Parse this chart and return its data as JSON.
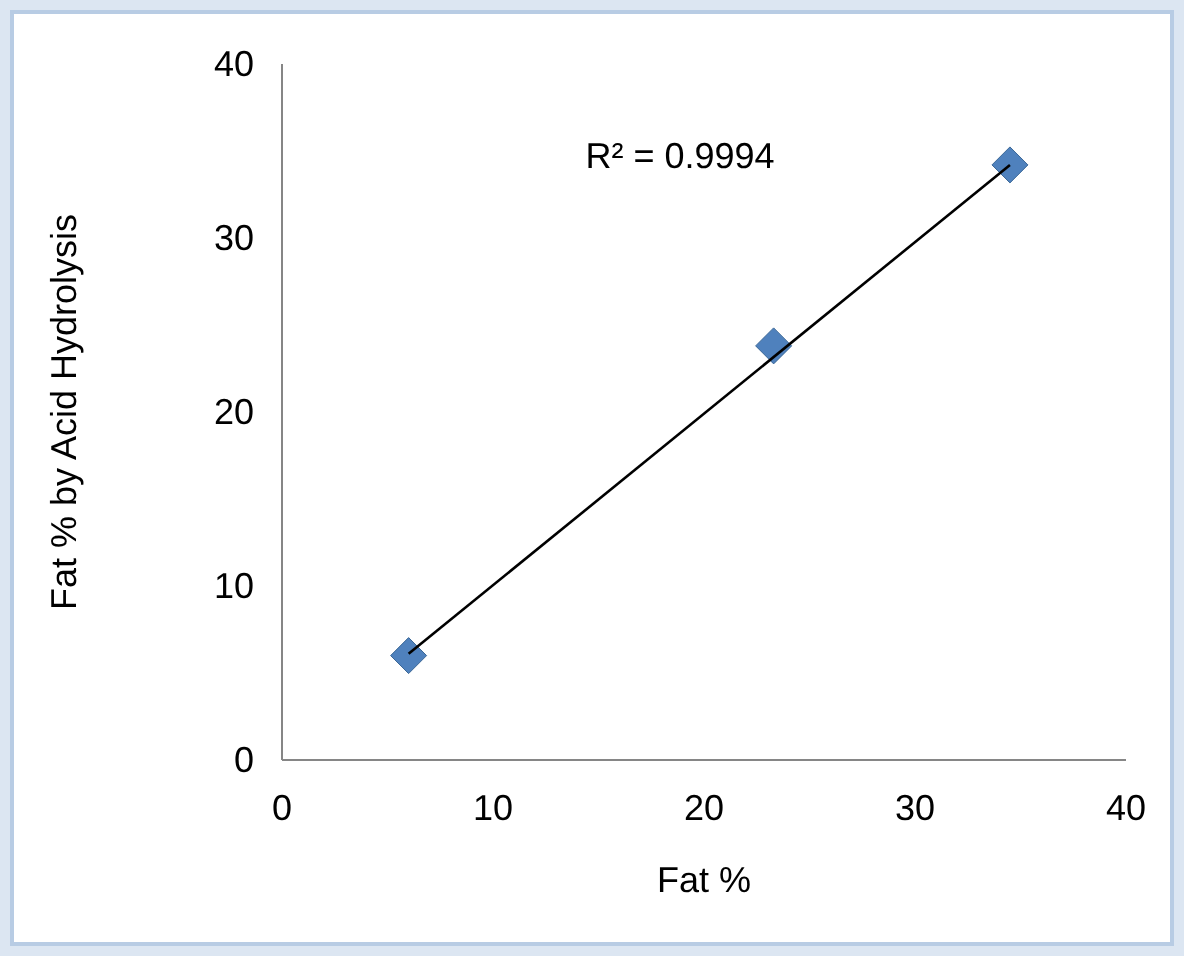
{
  "chart_data": {
    "type": "scatter",
    "xlabel": "Fat %",
    "ylabel": "Fat % by Acid Hydrolysis",
    "xlim": [
      0,
      40
    ],
    "ylim": [
      0,
      40
    ],
    "xticks": [
      0,
      10,
      20,
      30,
      40
    ],
    "yticks": [
      0,
      10,
      20,
      30,
      40
    ],
    "grid": false,
    "marker": "diamond",
    "annotations": [
      "R² = 0.9994"
    ],
    "series": [
      {
        "color": "#4f81bd",
        "x": [
          6,
          23.3,
          34.5
        ],
        "values": [
          6,
          23.8,
          34.2
        ]
      },
      {
        "type": "line",
        "color": "#000000",
        "x": [
          6,
          34.5
        ],
        "values": [
          6.1,
          34.2
        ],
        "marker": "none",
        "line_style": "solid"
      }
    ]
  }
}
